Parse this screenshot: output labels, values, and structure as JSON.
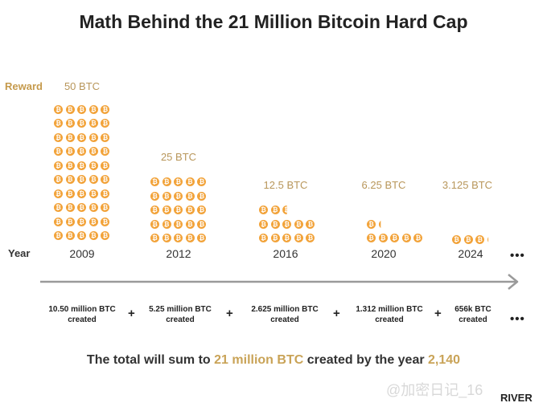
{
  "title": "Math Behind the 21 Million Bitcoin Hard Cap",
  "reward_label": "Reward",
  "year_label": "Year",
  "coin_glyph": "₿",
  "coin_color": "#f2a33a",
  "accent_color": "#c9a357",
  "periods": [
    {
      "year": "2009",
      "reward": "50 BTC",
      "coins": 50,
      "created": [
        "10.50 million BTC",
        "created"
      ]
    },
    {
      "year": "2012",
      "reward": "25 BTC",
      "coins": 25,
      "created": [
        "5.25 million BTC",
        "created"
      ]
    },
    {
      "year": "2016",
      "reward": "12.5 BTC",
      "coins": 12.5,
      "created": [
        "2.625 million BTC",
        "created"
      ]
    },
    {
      "year": "2020",
      "reward": "6.25 BTC",
      "coins": 6.25,
      "created": [
        "1.312 million BTC",
        "created"
      ]
    },
    {
      "year": "2024",
      "reward": "3.125 BTC",
      "coins": 3.125,
      "created": [
        "656k BTC",
        "created"
      ]
    }
  ],
  "plus": "+",
  "ellipsis": "•••",
  "total": {
    "prefix": "The total will sum to ",
    "amount": "21 million BTC",
    "middle": " created by the year ",
    "year": "2,140"
  },
  "watermark": "@加密日记_16",
  "brand": "RIVER"
}
